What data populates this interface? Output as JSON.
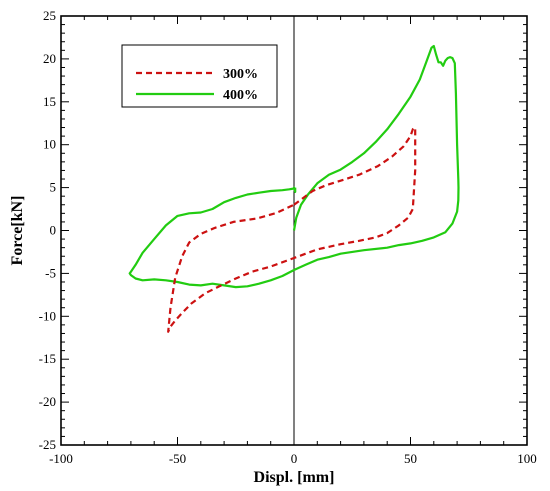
{
  "chart_data": {
    "type": "line",
    "xlabel": "Displ. [mm]",
    "ylabel": "Force[kN]",
    "xlim": [
      -100,
      100
    ],
    "ylim": [
      -25,
      25
    ],
    "xticks": [
      -100,
      -50,
      0,
      50,
      100
    ],
    "yticks": [
      -25,
      -20,
      -15,
      -10,
      -5,
      0,
      5,
      10,
      15,
      20,
      25
    ],
    "grid": false,
    "legend_position": "top-left",
    "series": [
      {
        "name": "300%",
        "color": "#cc1111",
        "dash": "dashed",
        "x": [
          0,
          3,
          8,
          14,
          20,
          28,
          36,
          42,
          47,
          50,
          51,
          52,
          52,
          51,
          49,
          45,
          40,
          35,
          28,
          20,
          10,
          0,
          -10,
          -18,
          -25,
          -32,
          -38,
          -44,
          -48,
          -51,
          -53,
          -54,
          -53,
          -51,
          -48,
          -45,
          -40,
          -34,
          -26,
          -16,
          -8,
          0
        ],
        "y": [
          3,
          3.6,
          4.6,
          5.3,
          5.8,
          6.5,
          7.5,
          8.6,
          9.8,
          11,
          11.8,
          12,
          7,
          2.5,
          1.5,
          0.6,
          -0.3,
          -0.8,
          -1.2,
          -1.6,
          -2.2,
          -3.2,
          -4.2,
          -4.8,
          -5.6,
          -6.5,
          -7.3,
          -8.5,
          -9.6,
          -10.5,
          -11.2,
          -11.8,
          -9,
          -5.5,
          -3,
          -1.4,
          -0.4,
          0.3,
          1,
          1.4,
          2,
          3
        ]
      },
      {
        "name": "400%",
        "color": "#22cc11",
        "dash": "solid",
        "x": [
          0,
          1,
          3,
          6,
          10,
          15,
          20,
          25,
          30,
          35,
          40,
          45,
          50,
          54,
          57,
          59,
          60,
          61,
          62,
          63,
          64,
          65,
          66,
          67,
          68,
          69,
          69.5,
          70,
          70.5,
          70.6,
          70.5,
          70,
          68,
          65,
          60,
          55,
          50,
          45,
          40,
          30,
          20,
          15,
          10,
          5,
          0,
          -5,
          -10,
          -15,
          -20,
          -25,
          -30,
          -35,
          -40,
          -45,
          -50,
          -55,
          -60,
          -65,
          -68,
          -70,
          -70.5,
          -70,
          -68,
          -65,
          -60,
          -55,
          -50,
          -45,
          -40,
          -35,
          -30,
          -25,
          -20,
          -15,
          -10,
          -5,
          -2,
          0,
          0,
          0.5,
          0.5
        ],
        "y": [
          0,
          1.5,
          3,
          4.2,
          5.5,
          6.5,
          7.1,
          8,
          9,
          10.3,
          11.8,
          13.6,
          15.6,
          17.6,
          19.8,
          21.3,
          21.5,
          20.5,
          19.6,
          19.6,
          19.2,
          19.8,
          20.1,
          20.2,
          20.1,
          19.5,
          16,
          10,
          6,
          5,
          3.5,
          2.2,
          0.8,
          -0.2,
          -0.8,
          -1.2,
          -1.5,
          -1.7,
          -2.0,
          -2.3,
          -2.7,
          -3.1,
          -3.4,
          -4.0,
          -4.6,
          -5.3,
          -5.8,
          -6.2,
          -6.5,
          -6.6,
          -6.4,
          -6.2,
          -6.4,
          -6.3,
          -6.0,
          -5.8,
          -5.7,
          -5.8,
          -5.6,
          -5.2,
          -5.0,
          -4.8,
          -4.0,
          -2.6,
          -1.0,
          0.6,
          1.7,
          2.0,
          2.1,
          2.5,
          3.3,
          3.8,
          4.2,
          4.4,
          4.6,
          4.7,
          4.8,
          4.9,
          5.0,
          4.5,
          5.0
        ]
      }
    ]
  }
}
